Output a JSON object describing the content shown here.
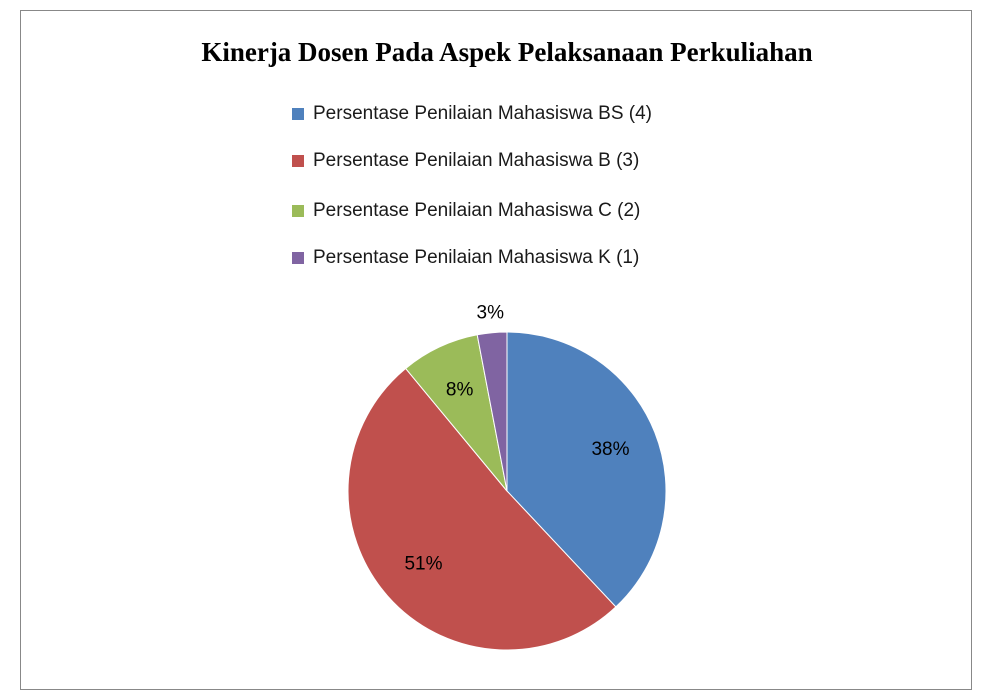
{
  "chart_data": {
    "type": "pie",
    "title": "Kinerja Dosen Pada Aspek Pelaksanaan Perkuliahan",
    "categories": [
      "Persentase Penilaian Mahasiswa BS (4)",
      "Persentase Penilaian Mahasiswa B (3)",
      "Persentase Penilaian Mahasiswa C (2)",
      "Persentase Penilaian Mahasiswa K (1)"
    ],
    "values": [
      38,
      51,
      8,
      3
    ],
    "value_labels": [
      "38%",
      "51%",
      "8%",
      "3%"
    ],
    "colors": [
      "#4f81bd",
      "#c0504d",
      "#9bbb59",
      "#8064a2"
    ],
    "legend": "top"
  }
}
